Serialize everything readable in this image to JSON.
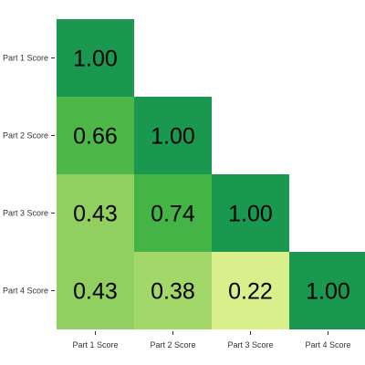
{
  "chart_data": {
    "type": "heatmap",
    "title": "",
    "xlabel": "",
    "ylabel": "",
    "x_categories": [
      "Part 1 Score",
      "Part 2 Score",
      "Part 3 Score",
      "Part 4 Score"
    ],
    "y_categories": [
      "Part 1 Score",
      "Part 2 Score",
      "Part 3 Score",
      "Part 4 Score"
    ],
    "cells": [
      {
        "row": 0,
        "col": 0,
        "value": 1.0,
        "label": "1.00",
        "color": "#1a9850"
      },
      {
        "row": 1,
        "col": 0,
        "value": 0.66,
        "label": "0.66",
        "color": "#4db848"
      },
      {
        "row": 1,
        "col": 1,
        "value": 1.0,
        "label": "1.00",
        "color": "#1a9850"
      },
      {
        "row": 2,
        "col": 0,
        "value": 0.43,
        "label": "0.43",
        "color": "#91cf60"
      },
      {
        "row": 2,
        "col": 1,
        "value": 0.74,
        "label": "0.74",
        "color": "#45b447"
      },
      {
        "row": 2,
        "col": 2,
        "value": 1.0,
        "label": "1.00",
        "color": "#1a9850"
      },
      {
        "row": 3,
        "col": 0,
        "value": 0.43,
        "label": "0.43",
        "color": "#91cf60"
      },
      {
        "row": 3,
        "col": 1,
        "value": 0.38,
        "label": "0.38",
        "color": "#a2d76a"
      },
      {
        "row": 3,
        "col": 2,
        "value": 0.22,
        "label": "0.22",
        "color": "#d9ef8b"
      },
      {
        "row": 3,
        "col": 3,
        "value": 1.0,
        "label": "1.00",
        "color": "#1a9850"
      }
    ],
    "legend": "none",
    "grid": false
  }
}
